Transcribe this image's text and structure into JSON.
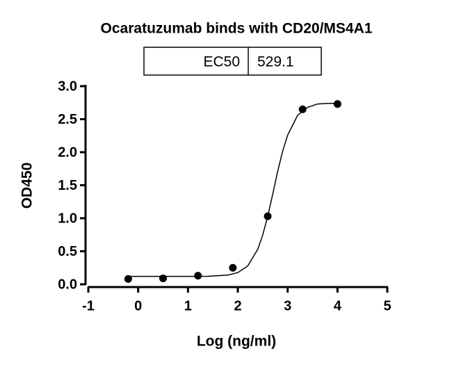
{
  "chart_data": {
    "type": "scatter",
    "title": "Ocaratuzumab binds with CD20/MS4A1",
    "xlabel": "Log (ng/ml)",
    "ylabel": "OD450",
    "annotation_table": [
      [
        "EC50",
        "529.1"
      ]
    ],
    "xlim": [
      -1,
      5
    ],
    "xticks": [
      -1,
      0,
      1,
      2,
      3,
      4,
      5
    ],
    "ylim": [
      0,
      3.0
    ],
    "yticks": [
      {
        "value": 0,
        "label": "0.0"
      },
      {
        "value": 0.5,
        "label": "0.5"
      },
      {
        "value": 1,
        "label": "1.0"
      },
      {
        "value": 1.5,
        "label": "1.5"
      },
      {
        "value": 2,
        "label": "2.0"
      },
      {
        "value": 2.5,
        "label": "2.5"
      },
      {
        "value": 3,
        "label": "3.0"
      }
    ],
    "series": [
      {
        "type": "scatter",
        "color": "#000000",
        "x": [
          -0.2,
          0.5,
          1.2,
          1.9,
          2.6,
          3.3,
          4.0
        ],
        "values": [
          0.08,
          0.09,
          0.13,
          0.25,
          1.03,
          2.65,
          2.73
        ]
      },
      {
        "type": "line",
        "color": "#000000",
        "x": [
          -0.2,
          0.2,
          0.6,
          1.0,
          1.4,
          1.8,
          2.0,
          2.2,
          2.4,
          2.5,
          2.6,
          2.7,
          2.8,
          2.9,
          3.0,
          3.2,
          3.4,
          3.6,
          3.8,
          4.0
        ],
        "values": [
          0.12,
          0.12,
          0.12,
          0.12,
          0.121,
          0.14,
          0.177,
          0.278,
          0.53,
          0.745,
          1.03,
          1.365,
          1.71,
          2.018,
          2.26,
          2.56,
          2.68,
          2.73,
          2.74,
          2.74
        ]
      }
    ]
  }
}
